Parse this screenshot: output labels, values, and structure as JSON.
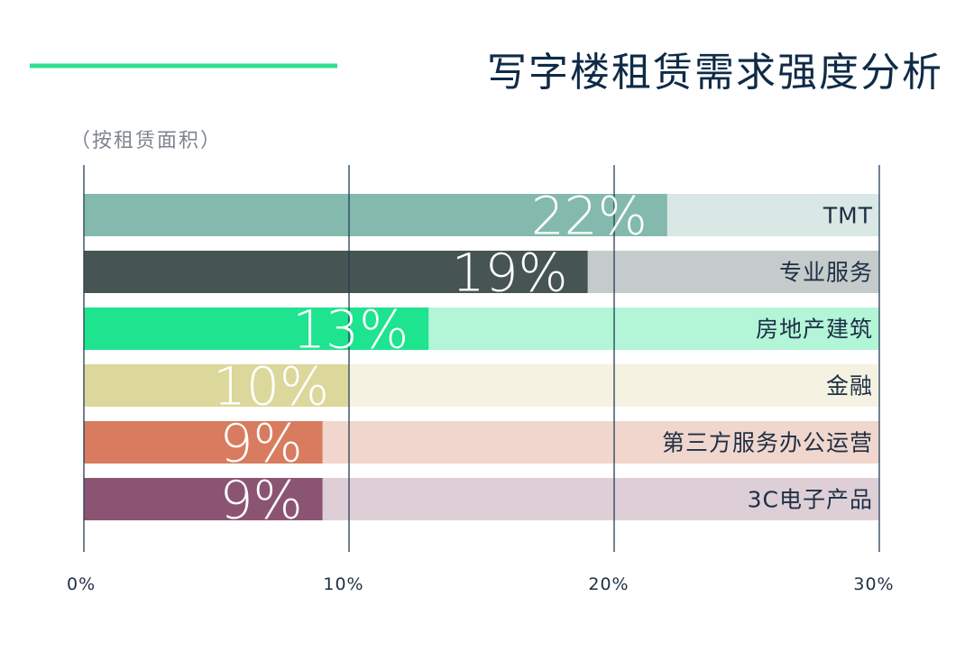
{
  "chart_data": {
    "type": "bar",
    "orientation": "horizontal",
    "title": "写字楼租赁需求强度分析",
    "subtitle": "（按租赁面积）",
    "categories": [
      "TMT",
      "专业服务",
      "房地产建筑",
      "金融",
      "第三方服务办公运营",
      "3C电子产品"
    ],
    "values": [
      22,
      19,
      13,
      10,
      9,
      9
    ],
    "data_labels": [
      "22%",
      "19%",
      "13%",
      "10%",
      "9%",
      "9%"
    ],
    "xlim": [
      0,
      30
    ],
    "xticks": [
      0,
      10,
      20,
      30
    ],
    "xtick_labels": [
      "0%",
      "10%",
      "20%",
      "30%"
    ],
    "grid": true,
    "colors": [
      "#84baad",
      "#465453",
      "#1ee38f",
      "#dcd79b",
      "#d87b5e",
      "#8c5473"
    ],
    "track_colors": [
      "#d9e8e4",
      "#c5cbcb",
      "#b3f5d7",
      "#f5f2e2",
      "#f0d6cc",
      "#decfd7"
    ]
  },
  "colors": {
    "accent_line": "#2ee08c",
    "title": "#0e2a47",
    "grid": "#243d58"
  }
}
